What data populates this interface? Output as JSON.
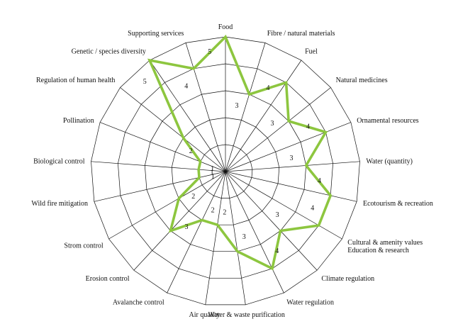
{
  "chart_data": {
    "type": "radar",
    "max": 5,
    "rings": 5,
    "grid": true,
    "series_color": "#8dc63f",
    "categories": [
      "Food",
      "Fibre / natural materials",
      "Fuel",
      "Natural medicines",
      "Ornamental resources",
      "Water (quantity)",
      "Ecotourism & recreation",
      "Cultural & amenity values\nEducation & research",
      "Climate regulation",
      "Water regulation",
      "Water & waste purification",
      "Air quality",
      "Avalanche control",
      "Erosion control",
      "Strom control",
      "Wild fire mitigation",
      "Biological control",
      "Pollination",
      "Regulation of human health",
      "Genetic / species diversity",
      "Supporting services"
    ],
    "values": [
      5,
      3,
      4,
      3,
      4,
      3,
      4,
      4,
      3,
      4,
      3,
      2,
      2,
      3,
      2,
      1,
      1,
      1,
      2,
      5,
      4
    ]
  }
}
